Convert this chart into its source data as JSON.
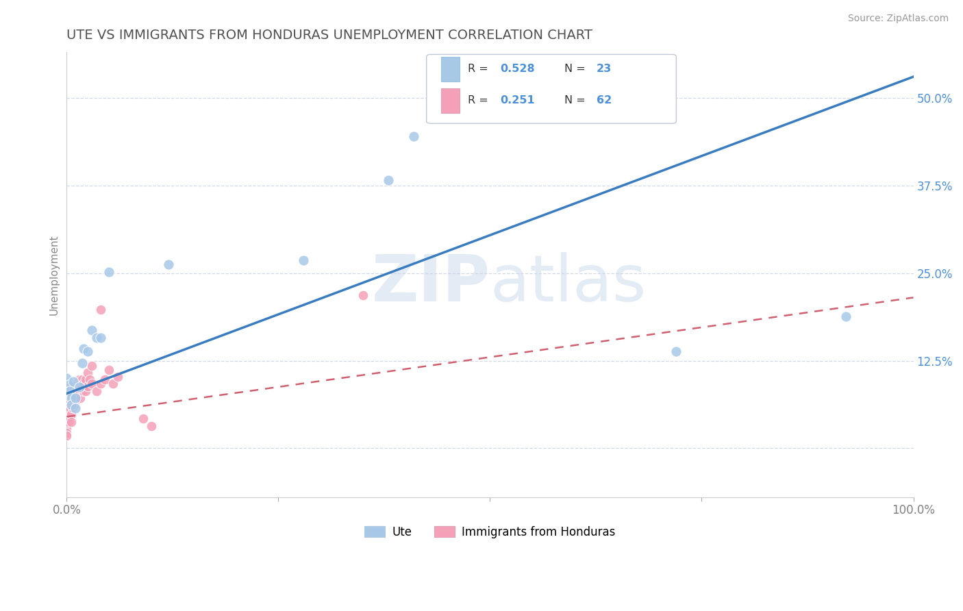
{
  "title": "UTE VS IMMIGRANTS FROM HONDURAS UNEMPLOYMENT CORRELATION CHART",
  "source": "Source: ZipAtlas.com",
  "ylabel": "Unemployment",
  "xlim": [
    0,
    1.0
  ],
  "ylim": [
    -0.07,
    0.565
  ],
  "xticks": [
    0.0,
    0.25,
    0.5,
    0.75,
    1.0
  ],
  "xtick_labels": [
    "0.0%",
    "",
    "",
    "",
    "100.0%"
  ],
  "yticks": [
    0.0,
    0.125,
    0.25,
    0.375,
    0.5
  ],
  "ytick_labels": [
    "",
    "12.5%",
    "25.0%",
    "37.5%",
    "50.0%"
  ],
  "watermark": "ZIPatlas",
  "legend_R1": "0.528",
  "legend_N1": "23",
  "legend_R2": "0.251",
  "legend_N2": "62",
  "legend_label1": "Ute",
  "legend_label2": "Immigrants from Honduras",
  "color_ute": "#A8C8E8",
  "color_honduras": "#F4A0B8",
  "color_ute_line": "#3A7CC0",
  "color_honduras_line": "#D06070",
  "title_color": "#404040",
  "blue_text_color": "#4A90D9",
  "dark_text_color": "#333333",
  "ute_scatter": [
    [
      0.0,
      0.1
    ],
    [
      0.0,
      0.082
    ],
    [
      0.002,
      0.09
    ],
    [
      0.004,
      0.082
    ],
    [
      0.005,
      0.072
    ],
    [
      0.005,
      0.062
    ],
    [
      0.008,
      0.095
    ],
    [
      0.01,
      0.072
    ],
    [
      0.01,
      0.057
    ],
    [
      0.015,
      0.087
    ],
    [
      0.018,
      0.122
    ],
    [
      0.02,
      0.142
    ],
    [
      0.025,
      0.138
    ],
    [
      0.03,
      0.168
    ],
    [
      0.035,
      0.158
    ],
    [
      0.04,
      0.158
    ],
    [
      0.05,
      0.252
    ],
    [
      0.12,
      0.262
    ],
    [
      0.28,
      0.268
    ],
    [
      0.38,
      0.382
    ],
    [
      0.41,
      0.445
    ],
    [
      0.72,
      0.138
    ],
    [
      0.92,
      0.188
    ]
  ],
  "honduras_scatter": [
    [
      0.0,
      0.042
    ],
    [
      0.0,
      0.038
    ],
    [
      0.0,
      0.052
    ],
    [
      0.0,
      0.058
    ],
    [
      0.0,
      0.032
    ],
    [
      0.0,
      0.028
    ],
    [
      0.0,
      0.022
    ],
    [
      0.0,
      0.018
    ],
    [
      0.0,
      0.068
    ],
    [
      0.0,
      0.078
    ],
    [
      0.001,
      0.048
    ],
    [
      0.001,
      0.062
    ],
    [
      0.002,
      0.052
    ],
    [
      0.002,
      0.038
    ],
    [
      0.003,
      0.088
    ],
    [
      0.003,
      0.078
    ],
    [
      0.003,
      0.068
    ],
    [
      0.004,
      0.058
    ],
    [
      0.004,
      0.088
    ],
    [
      0.005,
      0.078
    ],
    [
      0.005,
      0.048
    ],
    [
      0.005,
      0.038
    ],
    [
      0.006,
      0.072
    ],
    [
      0.006,
      0.062
    ],
    [
      0.007,
      0.058
    ],
    [
      0.007,
      0.082
    ],
    [
      0.008,
      0.088
    ],
    [
      0.008,
      0.068
    ],
    [
      0.009,
      0.062
    ],
    [
      0.01,
      0.078
    ],
    [
      0.01,
      0.068
    ],
    [
      0.01,
      0.088
    ],
    [
      0.012,
      0.082
    ],
    [
      0.012,
      0.072
    ],
    [
      0.013,
      0.092
    ],
    [
      0.013,
      0.078
    ],
    [
      0.014,
      0.088
    ],
    [
      0.015,
      0.082
    ],
    [
      0.015,
      0.098
    ],
    [
      0.016,
      0.092
    ],
    [
      0.016,
      0.072
    ],
    [
      0.018,
      0.088
    ],
    [
      0.018,
      0.098
    ],
    [
      0.02,
      0.082
    ],
    [
      0.02,
      0.092
    ],
    [
      0.022,
      0.098
    ],
    [
      0.022,
      0.082
    ],
    [
      0.025,
      0.088
    ],
    [
      0.025,
      0.108
    ],
    [
      0.027,
      0.098
    ],
    [
      0.03,
      0.118
    ],
    [
      0.03,
      0.092
    ],
    [
      0.035,
      0.082
    ],
    [
      0.04,
      0.198
    ],
    [
      0.04,
      0.092
    ],
    [
      0.045,
      0.098
    ],
    [
      0.05,
      0.112
    ],
    [
      0.055,
      0.092
    ],
    [
      0.06,
      0.102
    ],
    [
      0.09,
      0.042
    ],
    [
      0.1,
      0.032
    ],
    [
      0.35,
      0.218
    ]
  ],
  "ute_line_x": [
    0.0,
    1.0
  ],
  "ute_line_y": [
    0.078,
    0.53
  ],
  "honduras_line_x": [
    0.0,
    1.0
  ],
  "honduras_line_y": [
    0.045,
    0.215
  ]
}
